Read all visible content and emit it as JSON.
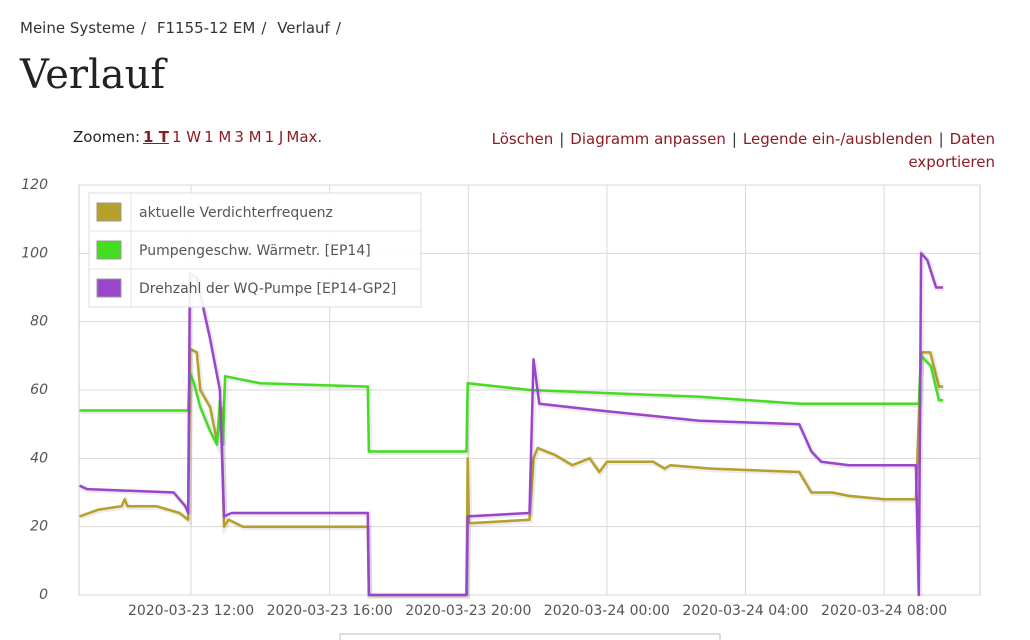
{
  "breadcrumb": [
    "Meine Systeme",
    "F1155-12 EM",
    "Verlauf"
  ],
  "breadcrumb_separator": "/",
  "heading": "Verlauf",
  "zoom": {
    "label": "Zoomen:",
    "options": [
      "1 T",
      "1 W",
      "1 M",
      "3 M",
      "1 J",
      "Max."
    ],
    "active": 0
  },
  "actions": [
    "Löschen",
    "Diagramm anpassen",
    "Legende ein-/ausblenden",
    "Daten exportieren"
  ],
  "action_separator": "|",
  "chart_data": {
    "type": "line",
    "xlim": [
      "2020-03-23 08:46",
      "2020-03-24 10:46"
    ],
    "xticks": [
      "2020-03-23 12:00",
      "2020-03-23 16:00",
      "2020-03-23 20:00",
      "2020-03-24 00:00",
      "2020-03-24 04:00",
      "2020-03-24 08:00"
    ],
    "ylim": [
      0,
      120
    ],
    "yticks": [
      0,
      20,
      40,
      60,
      80,
      100,
      120
    ],
    "grid": true,
    "legend_position": "upper left",
    "series": [
      {
        "name": "aktuelle Verdichterfrequenz",
        "color": "#b5a12a",
        "x": [
          "2020-03-23 08:47",
          "2020-03-23 09:20",
          "2020-03-23 10:00",
          "2020-03-23 10:05",
          "2020-03-23 10:10",
          "2020-03-23 11:00",
          "2020-03-23 11:40",
          "2020-03-23 11:55",
          "2020-03-23 11:58",
          "2020-03-23 12:10",
          "2020-03-23 12:16",
          "2020-03-23 12:33",
          "2020-03-23 12:45",
          "2020-03-23 12:52",
          "2020-03-23 12:57",
          "2020-03-23 13:05",
          "2020-03-23 13:30",
          "2020-03-23 17:06",
          "2020-03-23 17:08",
          "2020-03-23 19:57",
          "2020-03-23 19:59",
          "2020-03-23 20:01",
          "2020-03-23 21:46",
          "2020-03-23 21:53",
          "2020-03-23 22:00",
          "2020-03-23 22:30",
          "2020-03-23 23:00",
          "2020-03-23 23:30",
          "2020-03-23 23:47",
          "2020-03-24 00:00",
          "2020-03-24 01:20",
          "2020-03-24 01:40",
          "2020-03-24 01:50",
          "2020-03-24 03:00",
          "2020-03-24 05:33",
          "2020-03-24 05:54",
          "2020-03-24 06:30",
          "2020-03-24 06:59",
          "2020-03-24 08:00",
          "2020-03-24 08:55",
          "2020-03-24 09:04",
          "2020-03-24 09:20",
          "2020-03-24 09:35",
          "2020-03-24 09:42"
        ],
        "values": [
          23,
          25,
          26,
          28,
          26,
          26,
          24,
          22,
          72,
          71,
          60,
          55,
          45,
          55,
          20,
          22,
          20,
          20,
          0,
          0,
          40,
          21,
          22,
          40,
          43,
          41,
          38,
          40,
          36,
          39,
          39,
          37,
          38,
          37,
          36,
          30,
          30,
          29,
          28,
          28,
          71,
          71,
          61,
          61
        ]
      },
      {
        "name": "Pumpengeschw. Wärmetr. [EP14]",
        "color": "#44dd22",
        "x": [
          "2020-03-23 08:47",
          "2020-03-23 11:55",
          "2020-03-23 11:58",
          "2020-03-23 12:05",
          "2020-03-23 12:16",
          "2020-03-23 12:33",
          "2020-03-23 12:45",
          "2020-03-23 12:50",
          "2020-03-23 12:55",
          "2020-03-23 12:59",
          "2020-03-23 13:59",
          "2020-03-23 17:06",
          "2020-03-23 17:08",
          "2020-03-23 19:57",
          "2020-03-23 19:59",
          "2020-03-23 21:46",
          "2020-03-24 02:40",
          "2020-03-24 05:33",
          "2020-03-24 09:00",
          "2020-03-24 09:04",
          "2020-03-24 09:21",
          "2020-03-24 09:35",
          "2020-03-24 09:42"
        ],
        "values": [
          54,
          54,
          65,
          62,
          55,
          48,
          44,
          57,
          44,
          64,
          62,
          61,
          42,
          42,
          62,
          60,
          58,
          56,
          56,
          70,
          67,
          57,
          57
        ]
      },
      {
        "name": "Drehzahl der WQ-Pumpe [EP14-GP2]",
        "color": "#9b45cc",
        "x": [
          "2020-03-23 08:47",
          "2020-03-23 09:00",
          "2020-03-23 11:30",
          "2020-03-23 11:50",
          "2020-03-23 11:55",
          "2020-03-23 11:58",
          "2020-03-23 12:10",
          "2020-03-23 12:16",
          "2020-03-23 12:33",
          "2020-03-23 12:50",
          "2020-03-23 12:57",
          "2020-03-23 13:10",
          "2020-03-23 17:06",
          "2020-03-23 17:08",
          "2020-03-23 19:57",
          "2020-03-23 19:59",
          "2020-03-23 21:46",
          "2020-03-23 21:53",
          "2020-03-23 22:03",
          "2020-03-23 23:47",
          "2020-03-24 02:40",
          "2020-03-24 05:33",
          "2020-03-24 05:54",
          "2020-03-24 06:11",
          "2020-03-24 06:59",
          "2020-03-24 08:55",
          "2020-03-24 09:00",
          "2020-03-24 09:04",
          "2020-03-24 09:15",
          "2020-03-24 09:30",
          "2020-03-24 09:42"
        ],
        "values": [
          32,
          31,
          30,
          26,
          24,
          94,
          93,
          88,
          75,
          60,
          23,
          24,
          24,
          0,
          0,
          23,
          24,
          69,
          56,
          54,
          51,
          50,
          42,
          39,
          38,
          38,
          0,
          100,
          98,
          90,
          90
        ]
      }
    ]
  }
}
